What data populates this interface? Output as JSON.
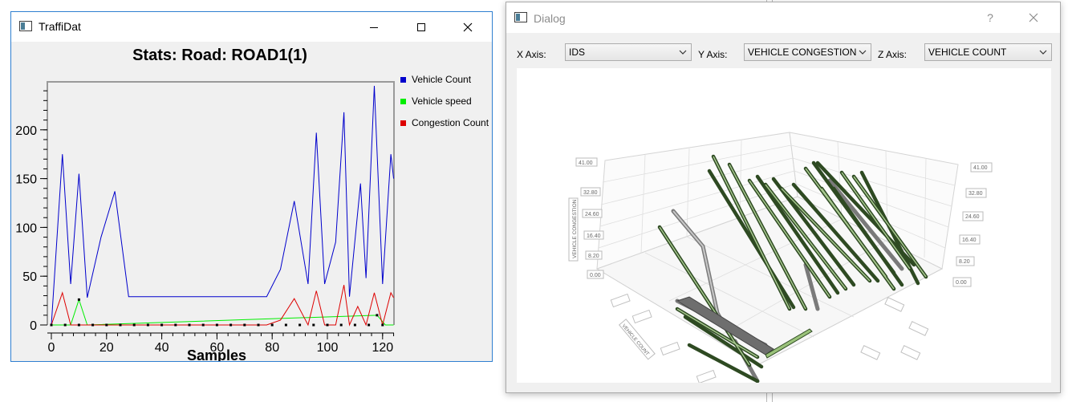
{
  "traffidat": {
    "title": "TraffiDat",
    "controls": {
      "minimize": "minimize",
      "maximize": "maximize",
      "close": "close"
    }
  },
  "chart_data": {
    "type": "line",
    "title": "Stats: Road: ROAD1(1)",
    "xlabel": "Samples",
    "ylabel": "",
    "xlim": [
      -2,
      124
    ],
    "ylim": [
      0,
      245
    ],
    "xticks": [
      0,
      20,
      40,
      60,
      80,
      100,
      120
    ],
    "yticks": [
      0,
      50,
      100,
      150,
      200
    ],
    "legend": "right",
    "series": [
      {
        "name": "Vehicle Count",
        "color": "#0000cc",
        "points": [
          [
            0,
            0
          ],
          [
            4,
            175
          ],
          [
            7,
            42
          ],
          [
            10,
            155
          ],
          [
            13,
            28
          ],
          [
            18,
            90
          ],
          [
            23,
            137
          ],
          [
            28,
            29
          ],
          [
            35,
            29
          ],
          [
            45,
            29
          ],
          [
            55,
            29
          ],
          [
            65,
            29
          ],
          [
            75,
            29
          ],
          [
            78,
            29
          ],
          [
            83,
            57
          ],
          [
            88,
            127
          ],
          [
            93,
            42
          ],
          [
            96,
            197
          ],
          [
            99,
            42
          ],
          [
            103,
            85
          ],
          [
            106,
            218
          ],
          [
            108,
            29
          ],
          [
            112,
            145
          ],
          [
            114,
            48
          ],
          [
            117,
            245
          ],
          [
            120,
            42
          ],
          [
            123,
            175
          ],
          [
            124,
            150
          ]
        ]
      },
      {
        "name": "Vehicle speed",
        "color": "#00ee00",
        "points": [
          [
            0,
            0
          ],
          [
            7,
            0
          ],
          [
            10,
            26
          ],
          [
            13,
            0
          ],
          [
            118,
            10
          ],
          [
            121,
            0
          ],
          [
            124,
            0
          ]
        ]
      },
      {
        "name": "Congestion Count",
        "color": "#dd0000",
        "points": [
          [
            0,
            0
          ],
          [
            4,
            33
          ],
          [
            7,
            0
          ],
          [
            10,
            0
          ],
          [
            13,
            0
          ],
          [
            78,
            0
          ],
          [
            83,
            5
          ],
          [
            88,
            27
          ],
          [
            93,
            0
          ],
          [
            96,
            35
          ],
          [
            99,
            0
          ],
          [
            103,
            0
          ],
          [
            106,
            41
          ],
          [
            108,
            0
          ],
          [
            111,
            19
          ],
          [
            114,
            0
          ],
          [
            117,
            33
          ],
          [
            120,
            0
          ],
          [
            123,
            33
          ],
          [
            124,
            28
          ]
        ]
      }
    ],
    "markers_x": [
      0,
      5,
      10,
      15,
      20,
      25,
      30,
      35,
      40,
      45,
      50,
      55,
      60,
      65,
      70,
      75,
      80,
      85,
      90,
      95,
      100,
      105,
      110,
      115,
      120
    ]
  },
  "dialog": {
    "title": "Dialog",
    "help": "?",
    "x_axis_label": "X Axis:",
    "x_axis_value": "IDS",
    "y_axis_label": "Y Axis:",
    "y_axis_value": "VEHICLE CONGESTION",
    "z_axis_label": "Z Axis:",
    "z_axis_value": "VEHICLE COUNT",
    "plot3d": {
      "left_ticks": [
        "41.00",
        "32.80",
        "24.60",
        "16.40",
        "8.20",
        "0.00"
      ],
      "right_ticks": [
        "41.00",
        "32.80",
        "24.60",
        "16.40",
        "8.20",
        "0.00"
      ],
      "y_axis_title": "VEHICLE CONGESTION",
      "z_axis_title": "VEHICLE COUNT"
    }
  }
}
